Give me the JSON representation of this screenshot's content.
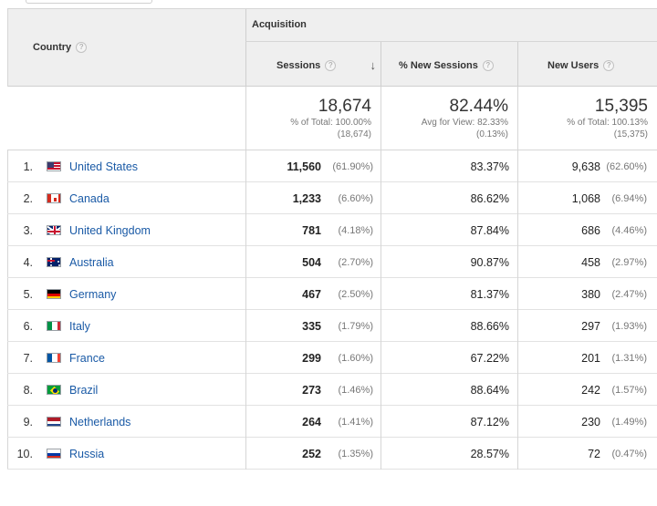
{
  "table": {
    "country_header": "Country",
    "acquisition_header": "Acquisition",
    "columns": {
      "sessions": "Sessions",
      "pct_new_sessions": "% New Sessions",
      "new_users": "New Users"
    },
    "help_glyph": "?",
    "sort_glyph": "↓",
    "totals": {
      "sessions": {
        "value": "18,674",
        "line1": "% of Total: 100.00%",
        "line2": "(18,674)"
      },
      "pct_new_sessions": {
        "value": "82.44%",
        "line1": "Avg for View: 82.33%",
        "line2": "(0.13%)"
      },
      "new_users": {
        "value": "15,395",
        "line1": "% of Total: 100.13%",
        "line2": "(15,375)"
      }
    },
    "rows": [
      {
        "rank": "1.",
        "country": "United States",
        "flag": "us",
        "sessions": "11,560",
        "sessions_pct": "(61.90%)",
        "pct_new": "83.37%",
        "new_users": "9,638",
        "new_users_pct": "(62.60%)"
      },
      {
        "rank": "2.",
        "country": "Canada",
        "flag": "ca",
        "sessions": "1,233",
        "sessions_pct": "(6.60%)",
        "pct_new": "86.62%",
        "new_users": "1,068",
        "new_users_pct": "(6.94%)"
      },
      {
        "rank": "3.",
        "country": "United Kingdom",
        "flag": "gb",
        "sessions": "781",
        "sessions_pct": "(4.18%)",
        "pct_new": "87.84%",
        "new_users": "686",
        "new_users_pct": "(4.46%)"
      },
      {
        "rank": "4.",
        "country": "Australia",
        "flag": "au",
        "sessions": "504",
        "sessions_pct": "(2.70%)",
        "pct_new": "90.87%",
        "new_users": "458",
        "new_users_pct": "(2.97%)"
      },
      {
        "rank": "5.",
        "country": "Germany",
        "flag": "de",
        "sessions": "467",
        "sessions_pct": "(2.50%)",
        "pct_new": "81.37%",
        "new_users": "380",
        "new_users_pct": "(2.47%)"
      },
      {
        "rank": "6.",
        "country": "Italy",
        "flag": "it",
        "sessions": "335",
        "sessions_pct": "(1.79%)",
        "pct_new": "88.66%",
        "new_users": "297",
        "new_users_pct": "(1.93%)"
      },
      {
        "rank": "7.",
        "country": "France",
        "flag": "fr",
        "sessions": "299",
        "sessions_pct": "(1.60%)",
        "pct_new": "67.22%",
        "new_users": "201",
        "new_users_pct": "(1.31%)"
      },
      {
        "rank": "8.",
        "country": "Brazil",
        "flag": "br",
        "sessions": "273",
        "sessions_pct": "(1.46%)",
        "pct_new": "88.64%",
        "new_users": "242",
        "new_users_pct": "(1.57%)"
      },
      {
        "rank": "9.",
        "country": "Netherlands",
        "flag": "nl",
        "sessions": "264",
        "sessions_pct": "(1.41%)",
        "pct_new": "87.12%",
        "new_users": "230",
        "new_users_pct": "(1.49%)"
      },
      {
        "rank": "10.",
        "country": "Russia",
        "flag": "ru",
        "sessions": "252",
        "sessions_pct": "(1.35%)",
        "pct_new": "28.57%",
        "new_users": "72",
        "new_users_pct": "(0.47%)"
      }
    ]
  },
  "colors": {
    "link": "#1a5aa6",
    "header_bg": "#efefef",
    "border": "#d6d6d6"
  }
}
